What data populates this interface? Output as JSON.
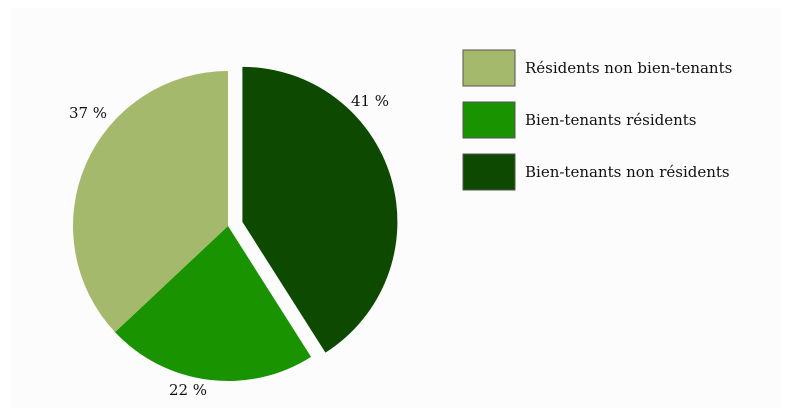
{
  "chart_data": {
    "type": "pie",
    "title": "",
    "slices": [
      {
        "name": "Bien-tenants non résidents",
        "value": 41,
        "label": "41 %",
        "color": "#0d4a00",
        "exploded": true
      },
      {
        "name": "Bien-tenants résidents",
        "value": 22,
        "label": "22 %",
        "color": "#1a9300",
        "exploded": false
      },
      {
        "name": "Résidents non bien-tenants",
        "value": 37,
        "label": "37 %",
        "color": "#a4b96b",
        "exploded": false
      }
    ],
    "legend": {
      "placement": "right",
      "entries": [
        {
          "label": "Résidents non bien-tenants",
          "color": "#a4b96b"
        },
        {
          "label": "Bien-tenants résidents",
          "color": "#1a9300"
        },
        {
          "label": "Bien-tenants non résidents",
          "color": "#0d4a00"
        }
      ]
    }
  }
}
